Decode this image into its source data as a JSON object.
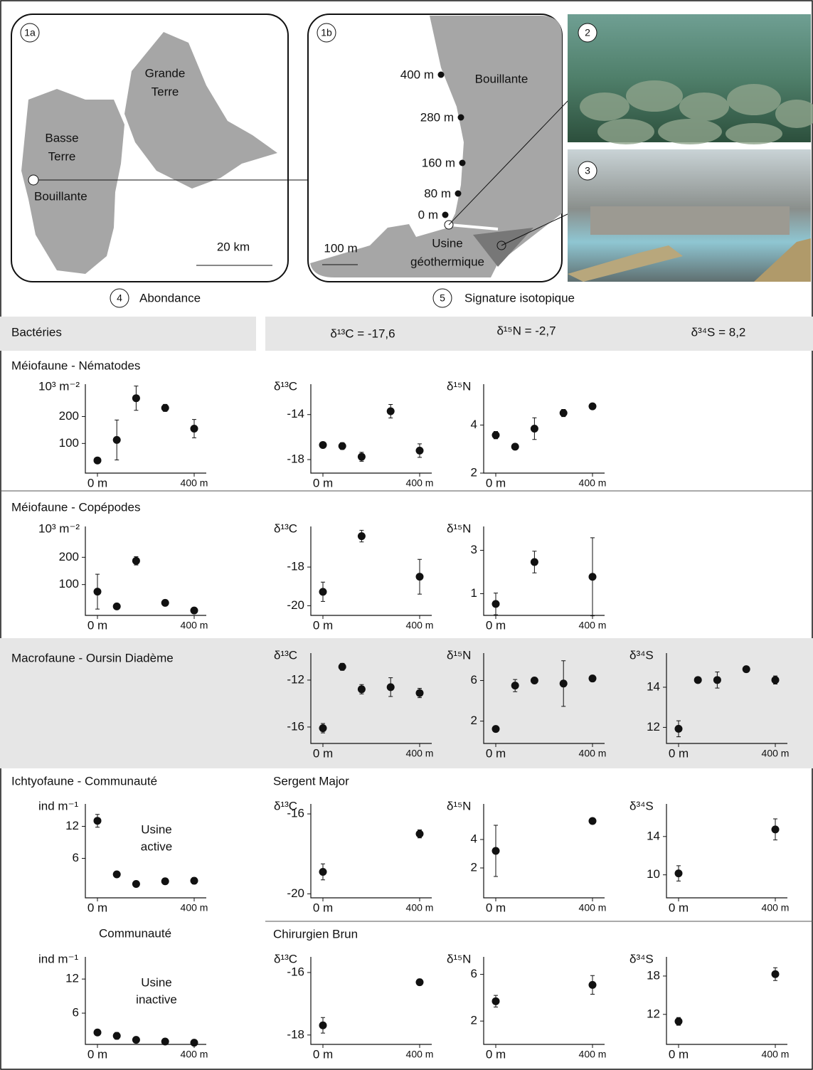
{
  "figure": {
    "map1a": {
      "badge": "1a",
      "labels": [
        "Grande",
        "Terre",
        "Basse",
        "Terre",
        "Bouillante"
      ],
      "scale": "20 km"
    },
    "map1b": {
      "badge": "1b",
      "stations": [
        "400 m",
        "280 m",
        "160 m",
        "80 m",
        "0 m"
      ],
      "town": "Bouillante",
      "plant": [
        "Usine",
        "géothermique"
      ],
      "scale": "100 m"
    },
    "photo2": {
      "badge": "2"
    },
    "photo3": {
      "badge": "3"
    },
    "abundance": {
      "badge": "4",
      "title": "Abondance"
    },
    "isotopes": {
      "badge": "5",
      "title": "Signature isotopique"
    },
    "rows": [
      "Bactéries",
      "Méiofaune - Nématodes",
      "Méiofaune - Copépodes",
      "Macrofaune - Oursin Diadème",
      "Ichtyofaune - Communauté",
      "Communauté",
      "Sergent Major",
      "Chirurgien Brun"
    ],
    "bacteria": [
      "δ¹³C = -17,6",
      "δ¹⁵N = -2,7",
      "δ³⁴S = 8,2"
    ]
  },
  "chart_data": [
    {
      "type": "scatter",
      "ylabel": "10³ m⁻²",
      "x": [
        0,
        80,
        160,
        280,
        400
      ],
      "values": [
        37,
        113,
        268,
        232,
        155
      ],
      "errors": [
        0,
        74,
        45,
        13,
        34
      ],
      "xlim": [
        -50,
        450
      ],
      "ylim": [
        -10,
        320
      ],
      "yticks": [
        100,
        200
      ],
      "xticks": [
        {
          "value": 0,
          "label": "0 m"
        },
        {
          "value": 400,
          "label": "400 m"
        }
      ]
    },
    {
      "type": "scatter",
      "ylabel": "δ¹³C",
      "x": [
        0,
        80,
        160,
        280,
        400
      ],
      "values": [
        -16.7,
        -16.8,
        -17.75,
        -13.7,
        -17.2
      ],
      "errors": [
        0.1,
        0.3,
        0.4,
        0.6,
        0.6
      ],
      "xlim": [
        -50,
        450
      ],
      "ylim": [
        -19.2,
        -11.3
      ],
      "yticks": [
        -18,
        -14
      ],
      "xticks": [
        {
          "value": 0,
          "label": "0 m"
        },
        {
          "value": 400,
          "label": "400 m"
        }
      ]
    },
    {
      "type": "scatter",
      "ylabel": "δ¹⁵N",
      "x": [
        0,
        80,
        160,
        280,
        400
      ],
      "values": [
        3.58,
        3.1,
        3.85,
        4.5,
        4.78
      ],
      "errors": [
        0.15,
        0.1,
        0.45,
        0.15,
        0.12
      ],
      "xlim": [
        -50,
        450
      ],
      "ylim": [
        2,
        5.7
      ],
      "yticks": [
        2,
        4
      ],
      "xticks": [
        {
          "value": 0,
          "label": "0 m"
        },
        {
          "value": 400,
          "label": "400 m"
        }
      ]
    },
    {
      "type": "scatter",
      "ylabel": "10³ m⁻²",
      "x": [
        0,
        80,
        160,
        280,
        400
      ],
      "values": [
        74,
        20,
        187,
        33,
        5
      ],
      "errors": [
        64,
        5,
        15,
        3,
        0
      ],
      "xlim": [
        -50,
        450
      ],
      "ylim": [
        -13,
        313
      ],
      "yticks": [
        100,
        200
      ],
      "xticks": [
        {
          "value": 0,
          "label": "0 m"
        },
        {
          "value": 400,
          "label": "400 m"
        }
      ]
    },
    {
      "type": "scatter",
      "ylabel": "δ¹³C",
      "x": [
        0,
        160,
        400
      ],
      "values": [
        -19.28,
        -16.4,
        -18.5
      ],
      "errors": [
        0.5,
        0.3,
        0.9
      ],
      "xlim": [
        -50,
        450
      ],
      "ylim": [
        -20.5,
        -15.9
      ],
      "yticks": [
        -20,
        -18
      ],
      "xticks": [
        {
          "value": 0,
          "label": "0 m"
        },
        {
          "value": 400,
          "label": "400 m"
        }
      ]
    },
    {
      "type": "scatter",
      "ylabel": "δ¹⁵N",
      "x": [
        0,
        160,
        400
      ],
      "values": [
        0.53,
        2.46,
        1.78
      ],
      "errors": [
        0.5,
        0.5,
        1.8
      ],
      "xlim": [
        -50,
        450
      ],
      "ylim": [
        0,
        4.1
      ],
      "yticks": [
        1,
        3
      ],
      "xticks": [
        {
          "value": 0,
          "label": "0 m"
        },
        {
          "value": 400,
          "label": "400 m"
        }
      ]
    },
    {
      "type": "scatter",
      "ylabel": "δ¹³C",
      "x": [
        0,
        80,
        160,
        280,
        400
      ],
      "values": [
        -16.1,
        -10.87,
        -12.78,
        -12.6,
        -13.1
      ],
      "errors": [
        0.4,
        0.3,
        0.4,
        0.8,
        0.4
      ],
      "xlim": [
        -50,
        450
      ],
      "ylim": [
        -17.4,
        -9.7
      ],
      "yticks": [
        -16,
        -12
      ],
      "xticks": [
        {
          "value": 0,
          "label": "0 m"
        },
        {
          "value": 400,
          "label": "400 m"
        }
      ]
    },
    {
      "type": "scatter",
      "ylabel": "δ¹⁵N",
      "x": [
        0,
        80,
        160,
        280,
        400
      ],
      "values": [
        1.23,
        5.5,
        6,
        5.7,
        6.2
      ],
      "errors": [
        0,
        0.6,
        0,
        2.25,
        0.3
      ],
      "xlim": [
        -50,
        450
      ],
      "ylim": [
        -0.2,
        8.7
      ],
      "yticks": [
        2,
        6
      ],
      "xticks": [
        {
          "value": 0,
          "label": "0 m"
        },
        {
          "value": 400,
          "label": "400 m"
        }
      ]
    },
    {
      "type": "scatter",
      "ylabel": "δ³⁴S",
      "x": [
        0,
        80,
        160,
        280,
        400
      ],
      "values": [
        11.93,
        14.36,
        14.36,
        14.9,
        14.36
      ],
      "errors": [
        0.4,
        0,
        0.4,
        0,
        0.2
      ],
      "xlim": [
        -50,
        450
      ],
      "ylim": [
        11.2,
        15.7
      ],
      "yticks": [
        12,
        14
      ],
      "xticks": [
        {
          "value": 0,
          "label": "0 m"
        },
        {
          "value": 400,
          "label": "400 m"
        }
      ]
    },
    {
      "type": "scatter",
      "ylabel": "ind m⁻¹",
      "annotation": [
        "Usine",
        "active"
      ],
      "x": [
        0,
        80,
        160,
        280,
        400
      ],
      "values": [
        13.04,
        3.0,
        1.2,
        1.7,
        1.8
      ],
      "errors": [
        1.2,
        0.3,
        0,
        0,
        0.6
      ],
      "xlim": [
        -50,
        450
      ],
      "ylim": [
        -1.4,
        16.2
      ],
      "yticks": [
        6,
        12
      ],
      "xticks": [
        {
          "value": 0,
          "label": "0 m"
        },
        {
          "value": 400,
          "label": "400 m"
        }
      ]
    },
    {
      "type": "scatter",
      "ylabel": "δ¹³C",
      "x": [
        0,
        400
      ],
      "values": [
        -18.9,
        -17.0
      ],
      "errors": [
        0.4,
        0.2
      ],
      "xlim": [
        -50,
        450
      ],
      "ylim": [
        -20.2,
        -15.5
      ],
      "yticks": [
        -20,
        -16
      ],
      "xticks": [
        {
          "value": 0,
          "label": "0 m"
        },
        {
          "value": 400,
          "label": "400 m"
        }
      ]
    },
    {
      "type": "scatter",
      "ylabel": "δ¹⁵N",
      "x": [
        0,
        400
      ],
      "values": [
        3.2,
        5.3
      ],
      "errors": [
        1.8,
        0.2
      ],
      "xlim": [
        -50,
        450
      ],
      "ylim": [
        -0.1,
        6.5
      ],
      "yticks": [
        2,
        4
      ],
      "xticks": [
        {
          "value": 0,
          "label": "0 m"
        },
        {
          "value": 400,
          "label": "400 m"
        }
      ]
    },
    {
      "type": "scatter",
      "ylabel": "δ³⁴S",
      "x": [
        0,
        400
      ],
      "values": [
        10.15,
        14.74
      ],
      "errors": [
        0.8,
        1.1
      ],
      "xlim": [
        -50,
        450
      ],
      "ylim": [
        7.6,
        17.4
      ],
      "yticks": [
        10,
        14
      ],
      "xticks": [
        {
          "value": 0,
          "label": "0 m"
        },
        {
          "value": 400,
          "label": "400 m"
        }
      ]
    },
    {
      "type": "scatter",
      "ylabel": "ind m⁻¹",
      "annotation": [
        "Usine",
        "inactive"
      ],
      "x": [
        0,
        80,
        160,
        280,
        400
      ],
      "values": [
        2.6,
        2.0,
        1.3,
        1.0,
        0.8
      ],
      "errors": [
        0,
        0.6,
        0,
        0,
        0
      ],
      "xlim": [
        -50,
        450
      ],
      "ylim": [
        0.5,
        15.9
      ],
      "yticks": [
        6,
        12
      ],
      "xticks": [
        {
          "value": 0,
          "label": "0 m"
        },
        {
          "value": 400,
          "label": "400 m"
        }
      ]
    },
    {
      "type": "scatter",
      "ylabel": "δ¹³C",
      "x": [
        0,
        400
      ],
      "values": [
        -17.69,
        -16.31
      ],
      "errors": [
        0.25,
        0.1
      ],
      "xlim": [
        -50,
        450
      ],
      "ylim": [
        -18.3,
        -15.5
      ],
      "yticks": [
        -18,
        -16
      ],
      "xticks": [
        {
          "value": 0,
          "label": "0 m"
        },
        {
          "value": 400,
          "label": "400 m"
        }
      ]
    },
    {
      "type": "scatter",
      "ylabel": "δ¹⁵N",
      "x": [
        0,
        400
      ],
      "values": [
        3.7,
        5.1
      ],
      "errors": [
        0.5,
        0.8
      ],
      "xlim": [
        -50,
        450
      ],
      "ylim": [
        0,
        7.5
      ],
      "yticks": [
        2,
        6
      ],
      "xticks": [
        {
          "value": 0,
          "label": "0 m"
        },
        {
          "value": 400,
          "label": "400 m"
        }
      ]
    },
    {
      "type": "scatter",
      "ylabel": "δ³⁴S",
      "x": [
        0,
        400
      ],
      "values": [
        10.9,
        18.3
      ],
      "errors": [
        0.6,
        1.0
      ],
      "xlim": [
        -50,
        450
      ],
      "ylim": [
        7.3,
        21
      ],
      "yticks": [
        12,
        18
      ],
      "xticks": [
        {
          "value": 0,
          "label": "0 m"
        },
        {
          "value": 400,
          "label": "400 m"
        }
      ]
    }
  ]
}
